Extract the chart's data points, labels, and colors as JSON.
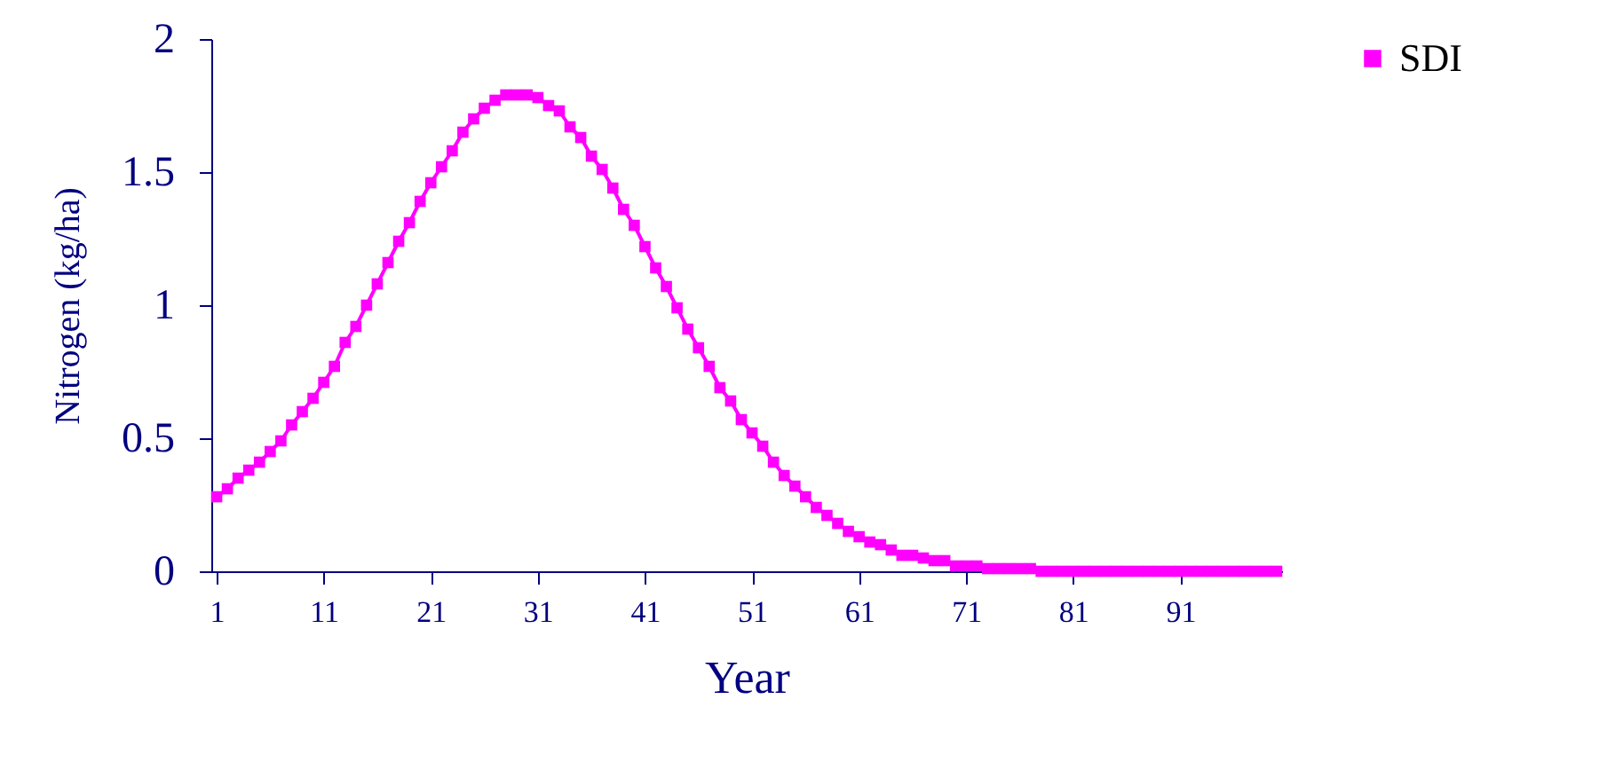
{
  "chart_data": {
    "type": "line",
    "xlabel": "Year",
    "ylabel": "Nitrogen (kg/ha)",
    "x": [
      1,
      2,
      3,
      4,
      5,
      6,
      7,
      8,
      9,
      10,
      11,
      12,
      13,
      14,
      15,
      16,
      17,
      18,
      19,
      20,
      21,
      22,
      23,
      24,
      25,
      26,
      27,
      28,
      29,
      30,
      31,
      32,
      33,
      34,
      35,
      36,
      37,
      38,
      39,
      40,
      41,
      42,
      43,
      44,
      45,
      46,
      47,
      48,
      49,
      50,
      51,
      52,
      53,
      54,
      55,
      56,
      57,
      58,
      59,
      60,
      61,
      62,
      63,
      64,
      65,
      66,
      67,
      68,
      69,
      70,
      71,
      72,
      73,
      74,
      75,
      76,
      77,
      78,
      79,
      80,
      81,
      82,
      83,
      84,
      85,
      86,
      87,
      88,
      89,
      90,
      91,
      92,
      93,
      94,
      95,
      96,
      97,
      98,
      99,
      100
    ],
    "series": [
      {
        "name": "SDI",
        "color": "#ff00ff",
        "values": [
          0.28,
          0.31,
          0.35,
          0.38,
          0.41,
          0.45,
          0.49,
          0.55,
          0.6,
          0.65,
          0.71,
          0.77,
          0.86,
          0.92,
          1.0,
          1.08,
          1.16,
          1.24,
          1.31,
          1.39,
          1.46,
          1.52,
          1.58,
          1.65,
          1.7,
          1.74,
          1.77,
          1.79,
          1.79,
          1.79,
          1.78,
          1.75,
          1.73,
          1.67,
          1.63,
          1.56,
          1.51,
          1.44,
          1.36,
          1.3,
          1.22,
          1.14,
          1.07,
          0.99,
          0.91,
          0.84,
          0.77,
          0.69,
          0.64,
          0.57,
          0.52,
          0.47,
          0.41,
          0.36,
          0.32,
          0.28,
          0.24,
          0.21,
          0.18,
          0.15,
          0.13,
          0.11,
          0.1,
          0.08,
          0.06,
          0.06,
          0.05,
          0.04,
          0.04,
          0.02,
          0.02,
          0.02,
          0.01,
          0.01,
          0.01,
          0.01,
          0.01,
          0,
          0,
          0,
          0,
          0,
          0,
          0,
          0,
          0,
          0,
          0,
          0,
          0,
          0,
          0,
          0,
          0,
          0,
          0,
          0,
          0,
          0,
          0
        ]
      }
    ],
    "xlim": [
      0.5,
      100.5
    ],
    "xticks": [
      1,
      11,
      21,
      31,
      41,
      51,
      61,
      71,
      81,
      91
    ],
    "ylim": [
      0,
      2
    ],
    "yticks": [
      0,
      0.5,
      1,
      1.5,
      2
    ],
    "grid": false,
    "legend": "right",
    "marker": "square",
    "line_style": "solid"
  }
}
